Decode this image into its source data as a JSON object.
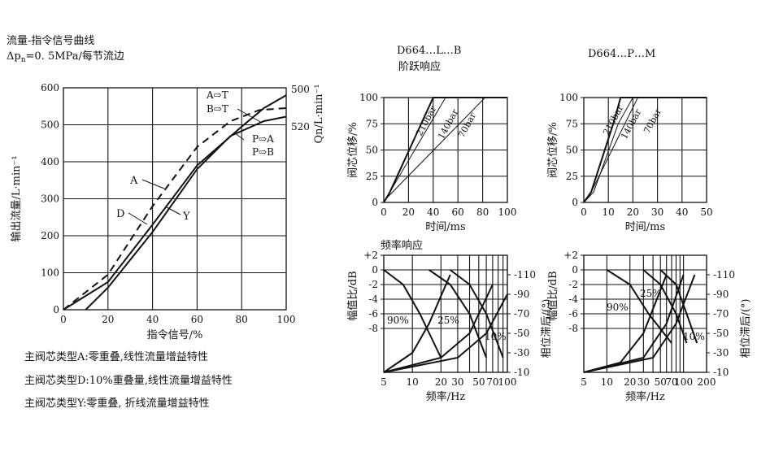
{
  "header": {
    "title": "流量-指令信号曲线",
    "subtitle": "Δp",
    "subtitle_sub": "n",
    "subtitle_rest": "=0. 5MPa/每节流边"
  },
  "footnotes": [
    "主阀芯类型A:零重叠,线性流量增益特性",
    "主阀芯类型D:10%重叠量,线性流量增益特性",
    "主阀芯类型Y:零重叠, 折线流量增益特性"
  ],
  "chart_data": [
    {
      "id": "flow-signal",
      "type": "line",
      "xlabel": "指令信号/%",
      "ylabel": "输出流量/L·min⁻¹",
      "y2label": "Qn/L·min⁻¹",
      "xlim": [
        0,
        100
      ],
      "ylim": [
        0,
        600
      ],
      "xticks": [
        "0",
        "20",
        "40",
        "60",
        "80",
        "100"
      ],
      "yticks": [
        "0",
        "100",
        "200",
        "300",
        "400",
        "500",
        "600"
      ],
      "y2ticks": [
        "500",
        "520"
      ],
      "grid": true,
      "annotations": [
        "A⇨T",
        "B⇨T",
        "P⇨A",
        "P⇨B",
        "A",
        "D",
        "Y"
      ],
      "series": [
        {
          "name": "A",
          "style": "dashed",
          "x": [
            0,
            20,
            40,
            60,
            75,
            88,
            100
          ],
          "y": [
            0,
            95,
            280,
            440,
            510,
            540,
            545
          ]
        },
        {
          "name": "D",
          "style": "solid",
          "x": [
            10,
            20,
            40,
            60,
            75,
            90,
            100
          ],
          "y": [
            0,
            60,
            210,
            380,
            470,
            510,
            522
          ]
        },
        {
          "name": "Y",
          "style": "solid",
          "x": [
            0,
            20,
            40,
            60,
            80,
            90,
            100
          ],
          "y": [
            0,
            75,
            230,
            390,
            495,
            545,
            580
          ]
        }
      ]
    },
    {
      "id": "step-L-B",
      "type": "line",
      "title": "D664…L…B",
      "subtitle": "阶跃响应",
      "xlabel": "时间/ms",
      "ylabel": "阀芯位移/%",
      "xlim": [
        0,
        100
      ],
      "ylim": [
        0,
        100
      ],
      "xticks": [
        "0",
        "20",
        "40",
        "60",
        "80",
        "100"
      ],
      "yticks": [
        "0",
        "25",
        "50",
        "75",
        "100"
      ],
      "grid": true,
      "series": [
        {
          "name": "210bar",
          "x": [
            0,
            5,
            40,
            55,
            100
          ],
          "y": [
            0,
            10,
            100,
            100,
            100
          ]
        },
        {
          "name": "140bar",
          "x": [
            0,
            5,
            50,
            100
          ],
          "y": [
            0,
            10,
            100,
            100
          ]
        },
        {
          "name": "70bar",
          "x": [
            0,
            3,
            82,
            100
          ],
          "y": [
            0,
            5,
            100,
            100
          ]
        }
      ]
    },
    {
      "id": "step-P-M",
      "type": "line",
      "title": "D664…P…M",
      "xlabel": "时间/ms",
      "ylabel": "阀芯位移/%",
      "xlim": [
        0,
        50
      ],
      "ylim": [
        0,
        100
      ],
      "xticks": [
        "0",
        "10",
        "20",
        "30",
        "40",
        "50"
      ],
      "yticks": [
        "0",
        "25",
        "50",
        "75",
        "100"
      ],
      "grid": true,
      "series": [
        {
          "name": "210bar",
          "x": [
            0,
            3,
            12,
            15,
            50
          ],
          "y": [
            0,
            10,
            75,
            100,
            100
          ]
        },
        {
          "name": "140bar",
          "x": [
            0,
            4,
            14,
            20,
            50
          ],
          "y": [
            0,
            10,
            75,
            100,
            100
          ]
        },
        {
          "name": "70bar",
          "x": [
            0,
            2,
            22,
            50
          ],
          "y": [
            0,
            5,
            100,
            100
          ]
        }
      ]
    },
    {
      "id": "freq-L-B",
      "type": "line",
      "title": "频率响应",
      "xlabel": "频率/Hz",
      "ylabel": "幅值比/dB",
      "y2label": "相位滞后/(°)",
      "xscale": "log",
      "xlim": [
        5,
        100
      ],
      "ylim": [
        -14,
        2
      ],
      "xticks": [
        "5",
        "10",
        "20",
        "30",
        "50",
        "70",
        "100"
      ],
      "yticks": [
        "+2",
        "0",
        "-2",
        "-4",
        "-6",
        "-8"
      ],
      "y2ticks": [
        "-110",
        "-90",
        "-70",
        "-50",
        "-30",
        "-10"
      ],
      "grid": true,
      "annotations": [
        "90%",
        "25%",
        "10%"
      ],
      "series": [
        {
          "name": "90% amplitude",
          "x": [
            5,
            8,
            12,
            20
          ],
          "y": [
            0,
            -2,
            -6,
            -12
          ]
        },
        {
          "name": "25% amplitude",
          "x": [
            15,
            25,
            40,
            60
          ],
          "y": [
            0,
            -2,
            -6,
            -12
          ]
        },
        {
          "name": "10% amplitude",
          "x": [
            25,
            40,
            60,
            90
          ],
          "y": [
            0,
            -2,
            -6,
            -12
          ]
        },
        {
          "name": "90% phase",
          "x": [
            5,
            10,
            15,
            25
          ],
          "y": [
            -10,
            -30,
            -60,
            -110
          ]
        },
        {
          "name": "25% phase",
          "x": [
            5,
            20,
            40,
            70
          ],
          "y": [
            -10,
            -25,
            -50,
            -100
          ]
        },
        {
          "name": "10% phase",
          "x": [
            5,
            30,
            60,
            100
          ],
          "y": [
            -10,
            -25,
            -50,
            -90
          ]
        }
      ]
    },
    {
      "id": "freq-P-M",
      "type": "line",
      "xlabel": "频率/Hz",
      "ylabel": "幅值比/dB",
      "y2label": "相位滞后/(°)",
      "xscale": "log",
      "xlim": [
        5,
        200
      ],
      "ylim": [
        -14,
        2
      ],
      "xticks": [
        "5",
        "10",
        "20",
        "30",
        "50",
        "70",
        "100",
        "200"
      ],
      "yticks": [
        "+2",
        "0",
        "-2",
        "-4",
        "-6",
        "-8"
      ],
      "y2ticks": [
        "-110",
        "-90",
        "-70",
        "-50",
        "-30",
        "-10"
      ],
      "grid": true,
      "annotations": [
        "90%",
        "25%",
        "10%"
      ],
      "series": [
        {
          "name": "90% amplitude",
          "x": [
            10,
            20,
            35,
            70
          ],
          "y": [
            0,
            -2,
            -6,
            -10
          ]
        },
        {
          "name": "25% amplitude",
          "x": [
            30,
            50,
            80,
            110
          ],
          "y": [
            0,
            -2,
            -6,
            -10
          ]
        },
        {
          "name": "10% amplitude",
          "x": [
            50,
            80,
            110,
            150
          ],
          "y": [
            0,
            -2,
            -6,
            -10
          ]
        },
        {
          "name": "90% phase",
          "x": [
            5,
            15,
            30,
            60
          ],
          "y": [
            -10,
            -20,
            -50,
            -110
          ]
        },
        {
          "name": "25% phase",
          "x": [
            5,
            30,
            60,
            100
          ],
          "y": [
            -10,
            -25,
            -60,
            -110
          ]
        },
        {
          "name": "10% phase",
          "x": [
            5,
            40,
            80,
            140
          ],
          "y": [
            -10,
            -25,
            -60,
            -110
          ]
        }
      ]
    }
  ]
}
